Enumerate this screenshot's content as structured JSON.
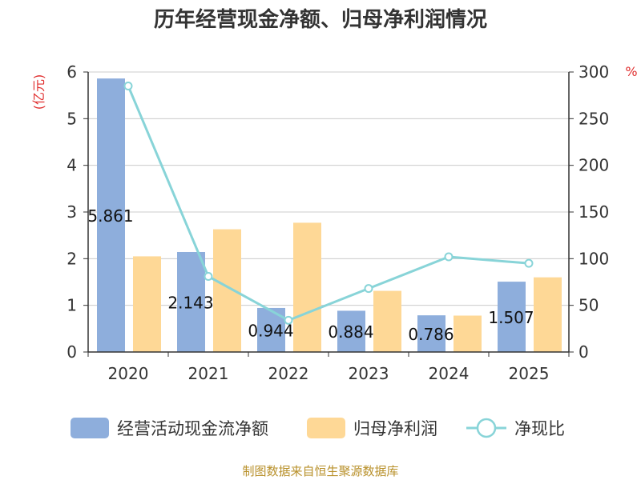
{
  "chart_data": {
    "type": "bar",
    "title": "历年经营现金净额、归母净利润情况",
    "categories": [
      "2020",
      "2021",
      "2022",
      "2023",
      "2024",
      "2025"
    ],
    "y_left": {
      "unit": "(亿元)",
      "ylim": [
        0,
        6
      ],
      "ticks": [
        "0",
        "1",
        "2",
        "3",
        "4",
        "5",
        "6"
      ]
    },
    "y_right": {
      "unit": "%",
      "ylim": [
        0,
        300
      ],
      "ticks": [
        "0",
        "50",
        "100",
        "150",
        "200",
        "250",
        "300"
      ]
    },
    "series": [
      {
        "name": "经营活动现金流净额",
        "type": "bar",
        "axis": "left",
        "color": "#8eaedc",
        "values": [
          5.861,
          2.143,
          0.944,
          0.884,
          0.786,
          1.507
        ],
        "labels": [
          "5.861",
          "2.143",
          "0.944",
          "0.884",
          "0.786",
          "1.507"
        ]
      },
      {
        "name": "归母净利润",
        "type": "bar",
        "axis": "left",
        "color": "#fed896",
        "values": [
          2.05,
          2.63,
          2.77,
          1.31,
          0.78,
          1.6
        ]
      },
      {
        "name": "净现比",
        "type": "line",
        "axis": "right",
        "color": "#88d4d8",
        "values": [
          285,
          81,
          34,
          68,
          102,
          95
        ]
      }
    ],
    "grid": true,
    "legend_position": "bottom",
    "source": "制图数据来自恒生聚源数据库"
  }
}
